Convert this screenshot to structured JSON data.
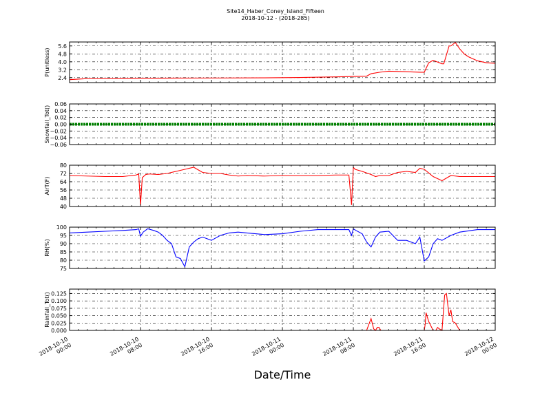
{
  "figure": {
    "title": "Site14_Haber_Coney_Island_Fifteen",
    "subtitle": "2018-10-12 - (2018-285)",
    "xlabel": "Date/Time",
    "x_tick_labels": [
      [
        "2018-10-10",
        "00:00"
      ],
      [
        "2018-10-10",
        "08:00"
      ],
      [
        "2018-10-10",
        "16:00"
      ],
      [
        "2018-10-11",
        "00:00"
      ],
      [
        "2018-10-11",
        "08:00"
      ],
      [
        "2018-10-11",
        "16:00"
      ],
      [
        "2018-10-12",
        "00:00"
      ]
    ]
  },
  "chart_data": [
    {
      "type": "line",
      "ylabel": "P(unitless)",
      "color": "#ff0000",
      "ylim": [
        1.9,
        6.0
      ],
      "yticks": [
        2.4,
        3.2,
        4.0,
        4.8,
        5.6
      ],
      "ytick_labels": [
        "2.4",
        "3.2",
        "4.0",
        "4.8",
        "5.6"
      ],
      "xlim_hours": [
        0,
        48
      ],
      "x": [
        0,
        1,
        2,
        4,
        6,
        8,
        10,
        14,
        18,
        22,
        26,
        30,
        32,
        33.5,
        34,
        35,
        36,
        38,
        39.5,
        40,
        40.5,
        41,
        42,
        42.2,
        42.8,
        43,
        43.5,
        44,
        44.5,
        45,
        46,
        47,
        48
      ],
      "values": [
        2.2,
        2.25,
        2.3,
        2.3,
        2.32,
        2.35,
        2.35,
        2.36,
        2.37,
        2.38,
        2.42,
        2.48,
        2.52,
        2.55,
        2.8,
        2.95,
        3.05,
        3.0,
        2.95,
        2.95,
        3.9,
        4.15,
        3.8,
        3.8,
        5.6,
        5.6,
        5.95,
        5.3,
        4.8,
        4.5,
        4.1,
        3.9,
        3.85
      ],
      "grid": true
    },
    {
      "type": "line",
      "ylabel": "Snowfall_Tot()",
      "color": "#008000",
      "ylim": [
        -0.06,
        0.06
      ],
      "yticks": [
        -0.06,
        -0.04,
        -0.02,
        0.0,
        0.02,
        0.04,
        0.06
      ],
      "ytick_labels": [
        "−0.06",
        "−0.04",
        "−0.02",
        "0.00",
        "0.02",
        "0.04",
        "0.06"
      ],
      "xlim_hours": [
        0,
        48
      ],
      "x": [
        0,
        48
      ],
      "values": [
        0,
        0
      ],
      "grid": true
    },
    {
      "type": "line",
      "ylabel": "AirT(F)",
      "color": "#ff0000",
      "ylim": [
        40,
        80
      ],
      "yticks": [
        40,
        48,
        56,
        64,
        72,
        80
      ],
      "ytick_labels": [
        "40",
        "48",
        "56",
        "64",
        "72",
        "80"
      ],
      "xlim_hours": [
        0,
        48
      ],
      "x": [
        0,
        2,
        4,
        6,
        7.5,
        7.8,
        8.0,
        8.2,
        8.6,
        9,
        10,
        11,
        12,
        13,
        14,
        15,
        16,
        17,
        18,
        19,
        20,
        22,
        24,
        26,
        28,
        30,
        31.5,
        31.8,
        32,
        32.2,
        33,
        34,
        34.5,
        35,
        36,
        37,
        38,
        39,
        39.5,
        40,
        41,
        41.5,
        42,
        43,
        44,
        46,
        48
      ],
      "values": [
        70,
        69.5,
        69,
        69,
        70.5,
        71.5,
        41,
        68,
        71,
        71.5,
        71,
        72,
        74,
        76,
        78,
        73,
        72,
        72,
        70.5,
        69.5,
        70,
        69.5,
        70,
        70,
        70,
        70.5,
        70.5,
        41.5,
        78,
        76,
        74,
        71,
        69,
        70,
        70,
        73,
        74,
        73,
        77,
        76,
        69,
        67,
        65,
        70,
        69,
        69,
        69
      ],
      "grid": true
    },
    {
      "type": "line",
      "ylabel": "RH(%)",
      "color": "#0000ff",
      "ylim": [
        75,
        100
      ],
      "yticks": [
        75,
        80,
        85,
        90,
        95,
        100
      ],
      "ytick_labels": [
        "75",
        "80",
        "85",
        "90",
        "95",
        "100"
      ],
      "xlim_hours": [
        0,
        48
      ],
      "x": [
        0,
        2,
        4,
        6,
        7.5,
        7.8,
        8.0,
        8.3,
        8.8,
        9.5,
        10,
        10.5,
        11,
        11.5,
        12,
        12.5,
        13,
        13.5,
        14,
        14.5,
        15,
        16,
        17,
        18,
        19,
        20,
        22,
        24,
        26,
        28,
        30,
        31.5,
        31.8,
        32,
        32.3,
        33,
        33.5,
        34,
        34.5,
        35,
        36,
        37,
        38,
        39,
        39.5,
        40,
        40.5,
        41,
        41.5,
        42,
        43,
        44,
        46,
        48
      ],
      "values": [
        96.5,
        97,
        97.5,
        98,
        98.5,
        99,
        94.5,
        97,
        99,
        98,
        97,
        95,
        92,
        90,
        82,
        81,
        76,
        88,
        91,
        93,
        94,
        92,
        95,
        96.5,
        97,
        96.5,
        95.5,
        96,
        97.5,
        98.5,
        98.5,
        98.5,
        95,
        99,
        98,
        96,
        91,
        88,
        94,
        97,
        97.5,
        92,
        92,
        90,
        94,
        79.5,
        82,
        90,
        93,
        92,
        95,
        97,
        98.5,
        98.5
      ],
      "grid": true
    },
    {
      "type": "line",
      "ylabel": "Rainfall_Tot()",
      "color": "#ff0000",
      "ylim": [
        0,
        0.14
      ],
      "yticks": [
        0.0,
        0.025,
        0.05,
        0.075,
        0.1,
        0.125
      ],
      "ytick_labels": [
        "0.000",
        "0.025",
        "0.050",
        "0.075",
        "0.100",
        "0.125"
      ],
      "xlim_hours": [
        0,
        48
      ],
      "x": [
        0,
        33.0,
        33.5,
        34.0,
        34.3,
        34.5,
        34.7,
        34.9,
        35.1,
        39.5,
        40.0,
        40.1,
        40.2,
        40.5,
        41.0,
        41.3,
        41.5,
        41.7,
        42.0,
        42.3,
        42.5,
        42.8,
        43.0,
        43.2,
        43.5,
        44.0,
        48
      ],
      "values": [
        0,
        0,
        0,
        0.04,
        0.005,
        0,
        0.01,
        0.01,
        0,
        0,
        0,
        0.02,
        0.06,
        0.03,
        0.0,
        0.0,
        0.01,
        0.005,
        0.0,
        0.12,
        0.125,
        0.05,
        0.07,
        0.03,
        0.025,
        0.0,
        0
      ],
      "grid": true
    }
  ]
}
